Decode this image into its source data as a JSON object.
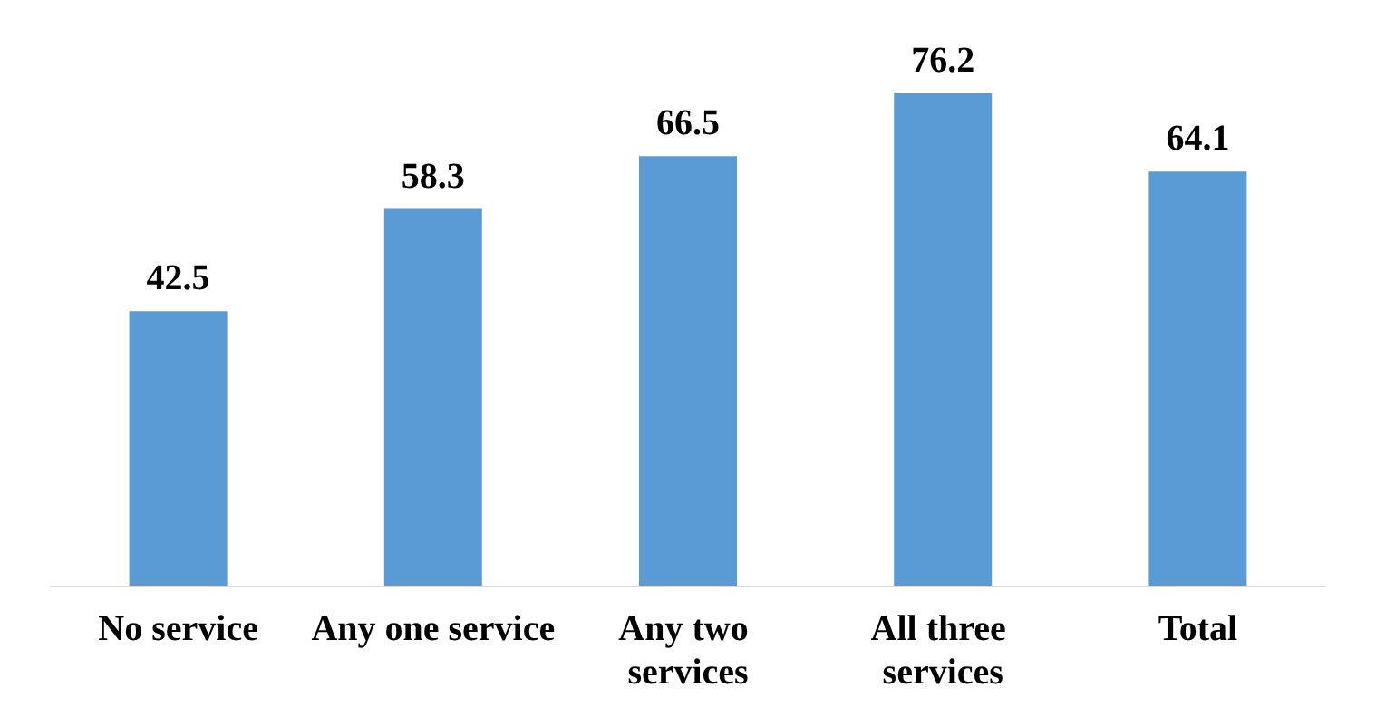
{
  "chart_data": {
    "type": "bar",
    "categories": [
      "No service",
      "Any one service",
      "Any two services",
      "All three services",
      "Total"
    ],
    "values": [
      42.5,
      58.3,
      66.5,
      76.2,
      64.1
    ],
    "color": "#5b9bd5",
    "data_labels": true
  }
}
